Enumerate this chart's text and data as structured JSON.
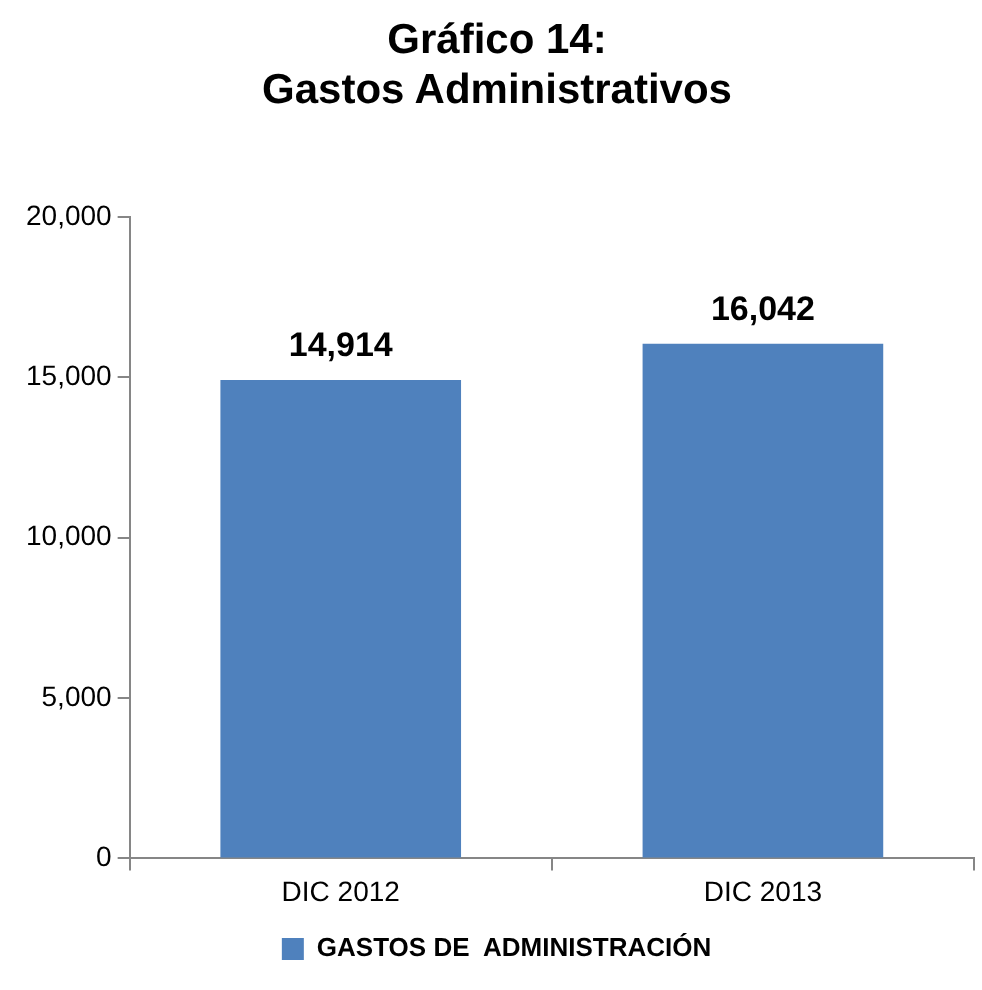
{
  "chart_data": {
    "type": "bar",
    "title": "Gráfico 14:\nGastos Administrativos",
    "categories": [
      "DIC 2012",
      "DIC 2013"
    ],
    "series": [
      {
        "name": "GASTOS DE  ADMINISTRACIÓN",
        "color": "#4f81bd",
        "values": [
          14914,
          16042
        ],
        "value_labels": [
          "14,914",
          "16,042"
        ]
      }
    ],
    "ylim": [
      0,
      20000
    ],
    "yticks": [
      0,
      {
        "value": 5000,
        "label": "5,000"
      },
      {
        "value": 10000,
        "label": "10,000"
      },
      {
        "value": 15000,
        "label": "15,000"
      },
      {
        "value": 20000,
        "label": "20,000"
      }
    ],
    "grid": false,
    "legend": "bottom"
  }
}
